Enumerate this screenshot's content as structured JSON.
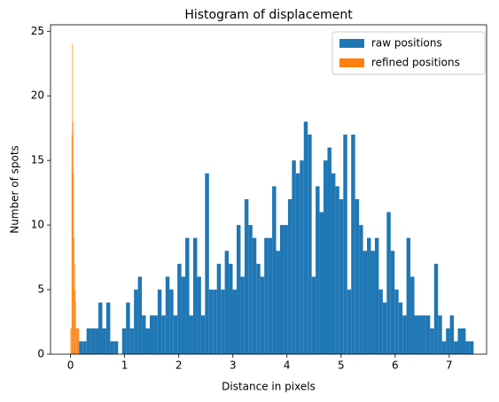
{
  "chart_data": {
    "type": "histogram",
    "title": "Histogram of displacement",
    "x_label": "Distance in pixels",
    "y_label": "Number of spots",
    "xlim": [
      -0.37,
      7.69
    ],
    "ylim": [
      0,
      25.5
    ],
    "xticks": [
      0,
      1,
      2,
      3,
      4,
      5,
      6,
      7
    ],
    "yticks": [
      0,
      5,
      10,
      15,
      20,
      25
    ],
    "legend": "upper right",
    "series": [
      {
        "name": "raw positions",
        "color": "#1f77b4",
        "bins": [
          0.15,
          0.223,
          0.296,
          0.369,
          0.442,
          0.515,
          0.588,
          0.661,
          0.734,
          0.807,
          0.88,
          0.953,
          1.026,
          1.099,
          1.172,
          1.245,
          1.318,
          1.391,
          1.464,
          1.537,
          1.61,
          1.683,
          1.756,
          1.829,
          1.902,
          1.975,
          2.048,
          2.121,
          2.194,
          2.267,
          2.34,
          2.413,
          2.486,
          2.559,
          2.632,
          2.705,
          2.778,
          2.851,
          2.924,
          2.997,
          3.07,
          3.143,
          3.216,
          3.289,
          3.362,
          3.435,
          3.508,
          3.581,
          3.654,
          3.727,
          3.8,
          3.873,
          3.946,
          4.019,
          4.092,
          4.165,
          4.238,
          4.311,
          4.384,
          4.457,
          4.53,
          4.603,
          4.676,
          4.749,
          4.822,
          4.895,
          4.968,
          5.041,
          5.114,
          5.187,
          5.26,
          5.333,
          5.406,
          5.479,
          5.552,
          5.625,
          5.698,
          5.771,
          5.844,
          5.917,
          5.99,
          6.063,
          6.136,
          6.209,
          6.282,
          6.355,
          6.428,
          6.501,
          6.574,
          6.647,
          6.72,
          6.793,
          6.866,
          6.939,
          7.012,
          7.085,
          7.158,
          7.231,
          7.304,
          7.377,
          7.45
        ],
        "values": [
          1,
          1,
          2,
          2,
          2,
          4,
          2,
          4,
          1,
          1,
          0,
          2,
          4,
          2,
          5,
          6,
          3,
          2,
          3,
          3,
          5,
          3,
          6,
          5,
          3,
          7,
          6,
          9,
          3,
          9,
          6,
          3,
          14,
          5,
          5,
          7,
          5,
          8,
          7,
          5,
          10,
          6,
          12,
          10,
          9,
          7,
          6,
          9,
          9,
          13,
          8,
          10,
          10,
          12,
          15,
          14,
          15,
          18,
          17,
          6,
          13,
          11,
          15,
          16,
          14,
          13,
          12,
          17,
          5,
          17,
          12,
          10,
          8,
          9,
          8,
          9,
          5,
          4,
          11,
          8,
          5,
          4,
          3,
          9,
          6,
          3,
          3,
          3,
          3,
          2,
          7,
          3,
          1,
          2,
          3,
          1,
          2,
          2,
          1,
          1
        ]
      },
      {
        "name": "refined positions",
        "color": "#ff7f0e",
        "bins": [
          0.0,
          0.01,
          0.02,
          0.03,
          0.04,
          0.05,
          0.06,
          0.07,
          0.08,
          0.09,
          0.1,
          0.11,
          0.12,
          0.13,
          0.14,
          0.15,
          0.16
        ],
        "values": [
          2,
          2,
          17,
          24,
          18,
          14,
          9,
          7,
          5,
          4,
          2,
          2,
          2,
          2,
          2,
          2
        ]
      }
    ]
  }
}
